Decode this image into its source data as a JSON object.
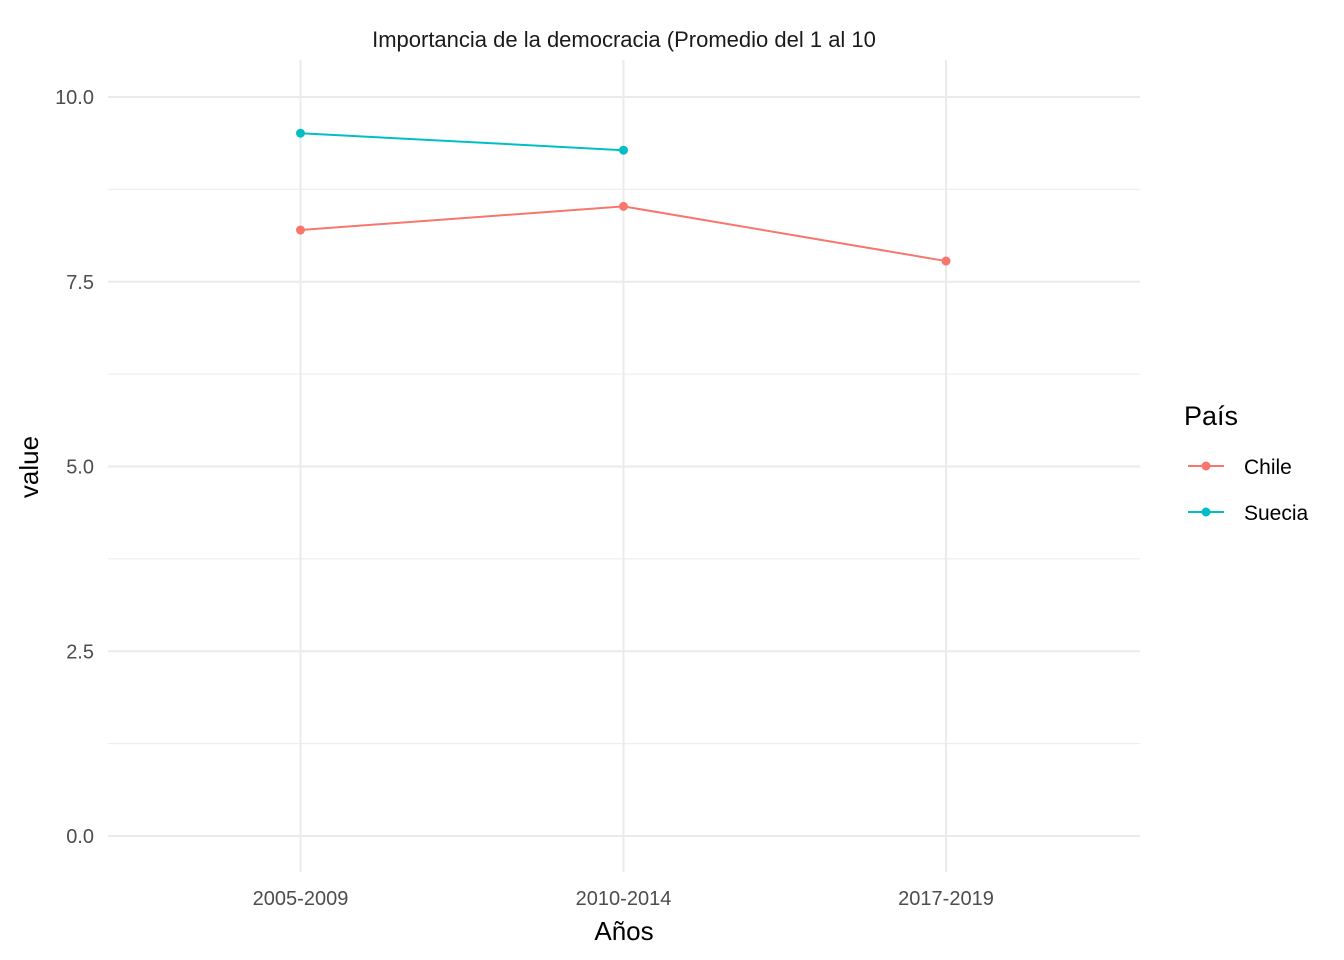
{
  "chart_data": {
    "type": "line",
    "title": "Importancia de la democracia (Promedio del 1 al 10",
    "xlabel": "Años",
    "ylabel": "value",
    "categories": [
      "2005-2009",
      "2010-2014",
      "2017-2019"
    ],
    "ylim": [
      0,
      10
    ],
    "yticks": [
      "0.0",
      "2.5",
      "5.0",
      "7.5",
      "10.0"
    ],
    "grid": true,
    "legend": {
      "title": "País",
      "position": "right"
    },
    "series": [
      {
        "name": "Chile",
        "color": "#F8766D",
        "values": [
          8.2,
          8.52,
          7.78
        ]
      },
      {
        "name": "Suecia",
        "color": "#00BFC4",
        "values": [
          9.51,
          9.28,
          null
        ]
      }
    ]
  }
}
